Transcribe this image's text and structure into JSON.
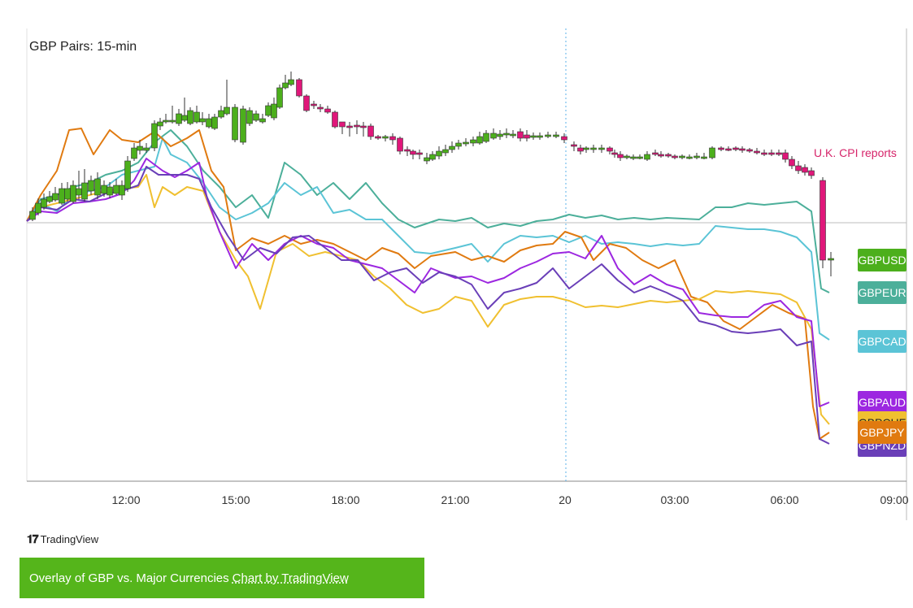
{
  "chart_data": {
    "type": "line",
    "title": "GBP Pairs: 15-min",
    "x_ticks": [
      "12:00",
      "15:00",
      "18:00",
      "21:00",
      "20",
      "03:00",
      "06:00",
      "09:00"
    ],
    "annotation": "U.K. CPI reports",
    "grid": false,
    "legend_placement": "right",
    "series": [
      {
        "name": "GBPUSD",
        "color": "#4caf1c"
      },
      {
        "name": "GBPEUR",
        "color": "#4caf9a"
      },
      {
        "name": "GBPCAD",
        "color": "#5bc4d6"
      },
      {
        "name": "GBPAUD",
        "color": "#9c27e0"
      },
      {
        "name": "GBPCHF",
        "color": "#f0c030"
      },
      {
        "name": "GBPJPY",
        "color": "#e07a10"
      },
      {
        "name": "GBPNZD",
        "color": "#6a3fb8"
      }
    ],
    "candle_up_color": "#4caf1c",
    "candle_down_color": "#e0177a"
  },
  "footer": {
    "brand": "TradingView",
    "caption_text": "Overlay of GBP vs. Major Currencies",
    "caption_link": "Chart by TradingView"
  }
}
